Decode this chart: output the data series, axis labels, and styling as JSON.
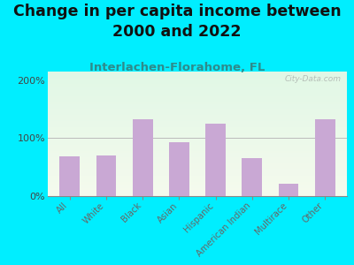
{
  "title": "Change in per capita income between\n2000 and 2022",
  "subtitle": "Interlachen-Florahome, FL",
  "categories": [
    "All",
    "White",
    "Black",
    "Asian",
    "Hispanic",
    "American Indian",
    "Multirace",
    "Other"
  ],
  "values": [
    68,
    70,
    132,
    93,
    125,
    65,
    22,
    133
  ],
  "bar_color": "#c9a8d4",
  "title_fontsize": 12.5,
  "subtitle_fontsize": 9.5,
  "subtitle_color": "#2e8b8b",
  "background_outer": "#00eeff",
  "ylabel_ticks": [
    "0%",
    "100%",
    "200%"
  ],
  "ytick_vals": [
    0,
    100,
    200
  ],
  "ylim": [
    0,
    215
  ],
  "watermark": "City-Data.com"
}
